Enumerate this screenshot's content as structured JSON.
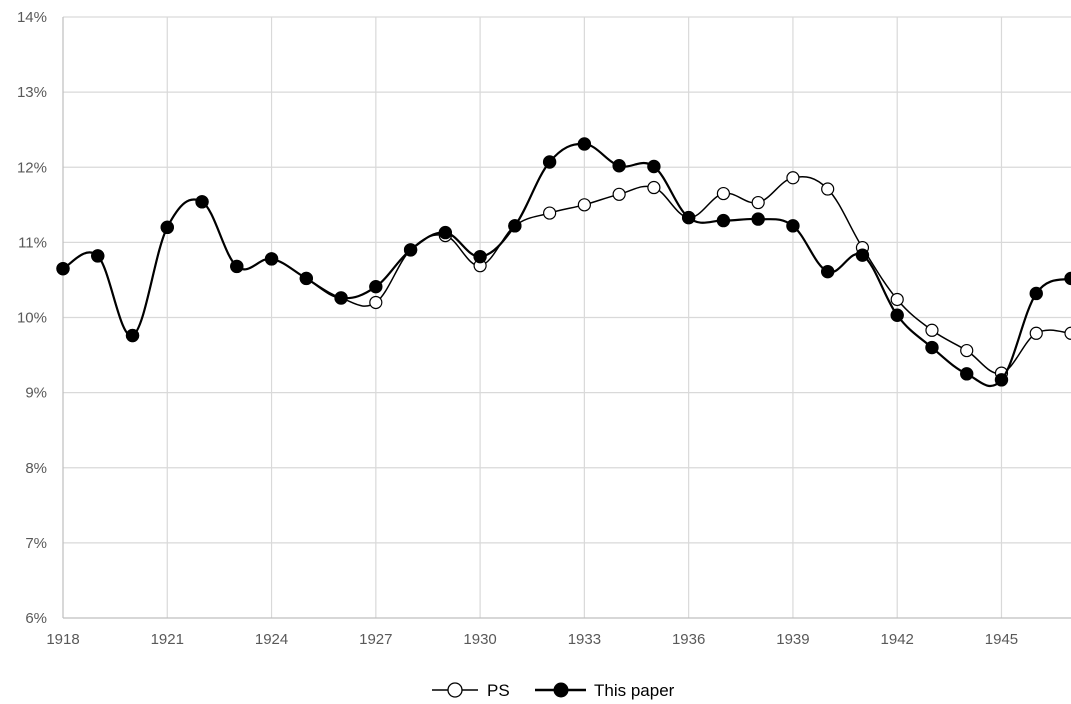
{
  "chart_data": {
    "type": "line",
    "x": [
      1918,
      1919,
      1920,
      1921,
      1922,
      1923,
      1924,
      1925,
      1926,
      1927,
      1928,
      1929,
      1930,
      1931,
      1932,
      1933,
      1934,
      1935,
      1936,
      1937,
      1938,
      1939,
      1940,
      1941,
      1942,
      1943,
      1944,
      1945,
      1946,
      1947
    ],
    "series": [
      {
        "name": "PS",
        "marker": "open-circle",
        "color": "#000000",
        "values": [
          10.65,
          10.82,
          9.76,
          11.2,
          11.54,
          10.68,
          10.78,
          10.52,
          10.26,
          10.2,
          10.9,
          11.09,
          10.69,
          11.22,
          11.39,
          11.5,
          11.64,
          11.73,
          11.33,
          11.65,
          11.53,
          11.86,
          11.71,
          10.93,
          10.24,
          9.83,
          9.56,
          9.26,
          9.79,
          9.79
        ]
      },
      {
        "name": "This paper",
        "marker": "filled-circle",
        "color": "#000000",
        "values": [
          10.65,
          10.82,
          9.76,
          11.2,
          11.54,
          10.68,
          10.78,
          10.52,
          10.26,
          10.41,
          10.9,
          11.13,
          10.81,
          11.22,
          12.07,
          12.31,
          12.02,
          12.01,
          11.33,
          11.29,
          11.31,
          11.22,
          10.61,
          10.83,
          10.03,
          9.6,
          9.25,
          9.17,
          10.32,
          10.52
        ]
      }
    ],
    "x_ticks": [
      "1918",
      "1921",
      "1924",
      "1927",
      "1930",
      "1933",
      "1936",
      "1939",
      "1942",
      "1945"
    ],
    "y_ticks": [
      "6%",
      "7%",
      "8%",
      "9%",
      "10%",
      "11%",
      "12%",
      "13%",
      "14%"
    ],
    "xlim": [
      1918,
      1947
    ],
    "ylim": [
      6,
      14
    ],
    "grid": "vertical and horizontal major gridlines",
    "legend_position": "bottom-center",
    "xlabel": "",
    "ylabel": "",
    "title": ""
  }
}
